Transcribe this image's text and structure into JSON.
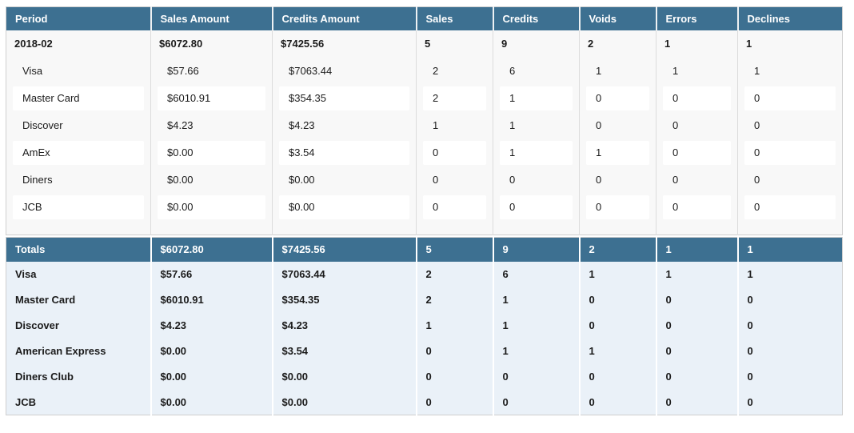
{
  "colors": {
    "header_bg": "#3d7091",
    "header_text": "#ffffff",
    "period_section_bg": "#f8f8f8",
    "row_box_bg": "#ffffff",
    "period_divider": "#dcdcdc",
    "totals_bg": "#eaf1f8",
    "totals_divider": "#ffffff",
    "outer_border": "#cfcfcf",
    "text": "#1b1b1b"
  },
  "columns": [
    "Period",
    "Sales Amount",
    "Credits Amount",
    "Sales",
    "Credits",
    "Voids",
    "Errors",
    "Declines"
  ],
  "period_section": {
    "period_row": {
      "label": "2018-02",
      "values": [
        "$6072.80",
        "$7425.56",
        "5",
        "9",
        "2",
        "1",
        "1"
      ]
    },
    "rows": [
      {
        "label": "Visa",
        "values": [
          "$57.66",
          "$7063.44",
          "2",
          "6",
          "1",
          "1",
          "1"
        ],
        "boxed": false
      },
      {
        "label": "Master Card",
        "values": [
          "$6010.91",
          "$354.35",
          "2",
          "1",
          "0",
          "0",
          "0"
        ],
        "boxed": true
      },
      {
        "label": "Discover",
        "values": [
          "$4.23",
          "$4.23",
          "1",
          "1",
          "0",
          "0",
          "0"
        ],
        "boxed": false
      },
      {
        "label": "AmEx",
        "values": [
          "$0.00",
          "$3.54",
          "0",
          "1",
          "1",
          "0",
          "0"
        ],
        "boxed": true
      },
      {
        "label": "Diners",
        "values": [
          "$0.00",
          "$0.00",
          "0",
          "0",
          "0",
          "0",
          "0"
        ],
        "boxed": false
      },
      {
        "label": "JCB",
        "values": [
          "$0.00",
          "$0.00",
          "0",
          "0",
          "0",
          "0",
          "0"
        ],
        "boxed": true
      }
    ]
  },
  "totals_section": {
    "header_row": {
      "label": "Totals",
      "values": [
        "$6072.80",
        "$7425.56",
        "5",
        "9",
        "2",
        "1",
        "1"
      ]
    },
    "rows": [
      {
        "label": "Visa",
        "values": [
          "$57.66",
          "$7063.44",
          "2",
          "6",
          "1",
          "1",
          "1"
        ]
      },
      {
        "label": "Master Card",
        "values": [
          "$6010.91",
          "$354.35",
          "2",
          "1",
          "0",
          "0",
          "0"
        ]
      },
      {
        "label": "Discover",
        "values": [
          "$4.23",
          "$4.23",
          "1",
          "1",
          "0",
          "0",
          "0"
        ]
      },
      {
        "label": "American Express",
        "values": [
          "$0.00",
          "$3.54",
          "0",
          "1",
          "1",
          "0",
          "0"
        ]
      },
      {
        "label": "Diners Club",
        "values": [
          "$0.00",
          "$0.00",
          "0",
          "0",
          "0",
          "0",
          "0"
        ]
      },
      {
        "label": "JCB",
        "values": [
          "$0.00",
          "$0.00",
          "0",
          "0",
          "0",
          "0",
          "0"
        ]
      }
    ]
  }
}
